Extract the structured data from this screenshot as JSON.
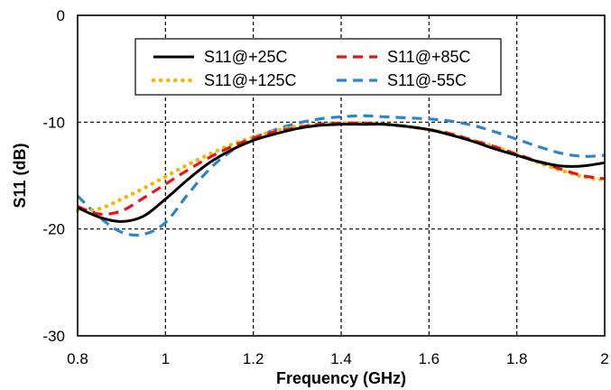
{
  "chart_data": {
    "type": "line",
    "title": "",
    "xlabel": "Frequency (GHz)",
    "ylabel": "S11 (dB)",
    "xlim": [
      0.8,
      2.0
    ],
    "ylim": [
      -30,
      0
    ],
    "xticks": [
      0.8,
      1.0,
      1.2,
      1.4,
      1.6,
      1.8,
      2.0
    ],
    "xtick_labels": [
      "0.8",
      "1",
      "1.2",
      "1.4",
      "1.6",
      "1.8",
      "2"
    ],
    "yticks": [
      -30,
      -20,
      -10,
      0
    ],
    "ytick_labels": [
      "-30",
      "-20",
      "-10",
      "0"
    ],
    "grid": true,
    "legend_position": "top-left",
    "series": [
      {
        "name": "S11@+25C",
        "color": "#000000",
        "style": "solid",
        "x": [
          0.8,
          0.85,
          0.9,
          0.95,
          1.0,
          1.05,
          1.1,
          1.15,
          1.2,
          1.25,
          1.3,
          1.35,
          1.4,
          1.45,
          1.5,
          1.55,
          1.6,
          1.65,
          1.7,
          1.75,
          1.8,
          1.85,
          1.9,
          1.95,
          2.0
        ],
        "y": [
          -18.0,
          -18.9,
          -19.3,
          -18.8,
          -17.2,
          -15.4,
          -13.8,
          -12.6,
          -11.7,
          -11.1,
          -10.6,
          -10.3,
          -10.2,
          -10.2,
          -10.2,
          -10.4,
          -10.7,
          -11.2,
          -11.8,
          -12.5,
          -13.1,
          -13.7,
          -14.1,
          -14.1,
          -13.8
        ]
      },
      {
        "name": "S11@+85C",
        "color": "#e8141c",
        "style": "dashed",
        "x": [
          0.8,
          0.85,
          0.9,
          0.95,
          1.0,
          1.05,
          1.1,
          1.15,
          1.2,
          1.25,
          1.3,
          1.35,
          1.4,
          1.45,
          1.5,
          1.55,
          1.6,
          1.65,
          1.7,
          1.75,
          1.8,
          1.85,
          1.9,
          1.95,
          2.0
        ],
        "y": [
          -17.9,
          -18.6,
          -18.3,
          -17.1,
          -15.8,
          -14.5,
          -13.3,
          -12.3,
          -11.5,
          -10.9,
          -10.5,
          -10.2,
          -10.1,
          -10.1,
          -10.2,
          -10.4,
          -10.7,
          -11.1,
          -11.7,
          -12.3,
          -13.0,
          -13.7,
          -14.4,
          -15.0,
          -15.3
        ]
      },
      {
        "name": "S11@+125C",
        "color": "#f5b800",
        "style": "dotted",
        "x": [
          0.8,
          0.85,
          0.9,
          0.95,
          1.0,
          1.05,
          1.1,
          1.15,
          1.2,
          1.25,
          1.3,
          1.35,
          1.4,
          1.45,
          1.5,
          1.55,
          1.6,
          1.65,
          1.7,
          1.75,
          1.8,
          1.85,
          1.9,
          1.95,
          2.0
        ],
        "y": [
          -18.3,
          -18.1,
          -17.2,
          -16.2,
          -15.1,
          -14.0,
          -13.0,
          -12.1,
          -11.4,
          -10.8,
          -10.4,
          -10.2,
          -10.1,
          -10.1,
          -10.2,
          -10.4,
          -10.7,
          -11.1,
          -11.7,
          -12.3,
          -13.0,
          -13.8,
          -14.5,
          -15.1,
          -15.4
        ]
      },
      {
        "name": "S11@-55C",
        "color": "#2e86c8",
        "style": "dashed",
        "x": [
          0.8,
          0.85,
          0.9,
          0.95,
          1.0,
          1.05,
          1.1,
          1.15,
          1.2,
          1.25,
          1.3,
          1.35,
          1.4,
          1.45,
          1.5,
          1.55,
          1.6,
          1.65,
          1.7,
          1.75,
          1.8,
          1.85,
          1.9,
          1.95,
          2.0
        ],
        "y": [
          -16.9,
          -18.9,
          -20.3,
          -20.5,
          -19.4,
          -16.8,
          -14.4,
          -12.7,
          -11.5,
          -10.7,
          -10.1,
          -9.7,
          -9.5,
          -9.4,
          -9.5,
          -9.6,
          -9.7,
          -9.9,
          -10.3,
          -10.9,
          -11.6,
          -12.3,
          -12.9,
          -13.2,
          -13.1
        ]
      }
    ]
  }
}
